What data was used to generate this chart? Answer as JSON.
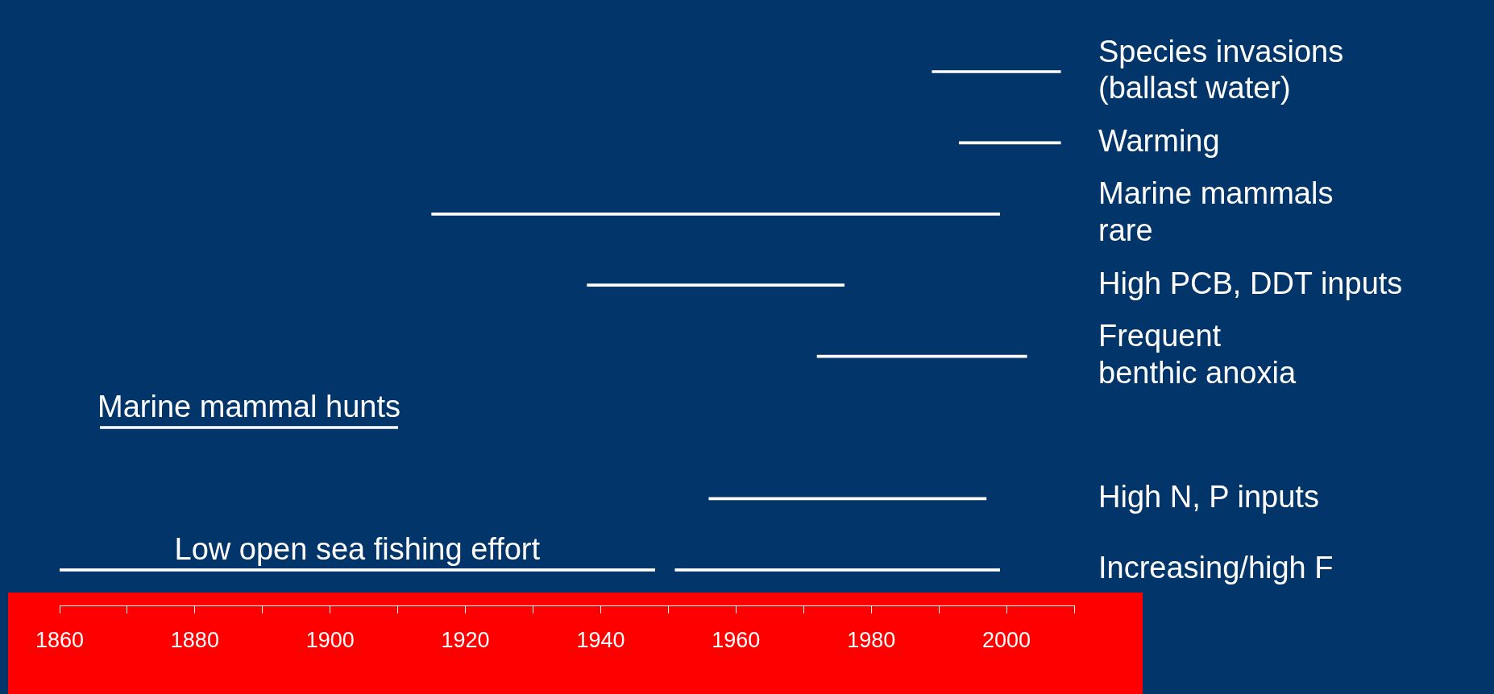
{
  "chart_data": {
    "type": "bar",
    "orientation": "horizontal",
    "categories": [
      "Species invasions\n(ballast water)",
      "Warming",
      "Marine mammals\nrare",
      "High PCB, DDT inputs",
      "Frequent\nbenthic anoxia",
      null,
      "High N, P inputs",
      "Increasing/high F"
    ],
    "series": [
      {
        "color": "#ffffff",
        "base": [
          1989,
          1993,
          1915,
          1938,
          1972,
          1866,
          1956,
          1951
        ],
        "values": [
          19,
          15,
          84,
          38,
          31,
          44,
          41,
          48
        ],
        "value_labels": [
          null,
          null,
          null,
          null,
          null,
          "Marine mammal hunts",
          null,
          null
        ]
      },
      {
        "color": "#ffffff",
        "base": [
          null,
          null,
          null,
          null,
          null,
          null,
          null,
          1860
        ],
        "values": [
          null,
          null,
          null,
          null,
          null,
          null,
          null,
          88
        ],
        "value_labels": [
          null,
          null,
          null,
          null,
          null,
          null,
          null,
          "Low open sea fishing effort"
        ]
      }
    ],
    "xlim": [
      1860,
      2010
    ],
    "xticks": [
      1860,
      {
        "value": 1870,
        "label": null
      },
      1880,
      {
        "value": 1890,
        "label": null
      },
      1900,
      {
        "value": 1910,
        "label": null
      },
      1920,
      {
        "value": 1930,
        "label": null
      },
      1940,
      {
        "value": 1950,
        "label": null
      },
      1960,
      {
        "value": 1970,
        "label": null
      },
      1980,
      {
        "value": 1990,
        "label": null
      },
      2000,
      {
        "value": 2010,
        "label": null
      }
    ]
  }
}
